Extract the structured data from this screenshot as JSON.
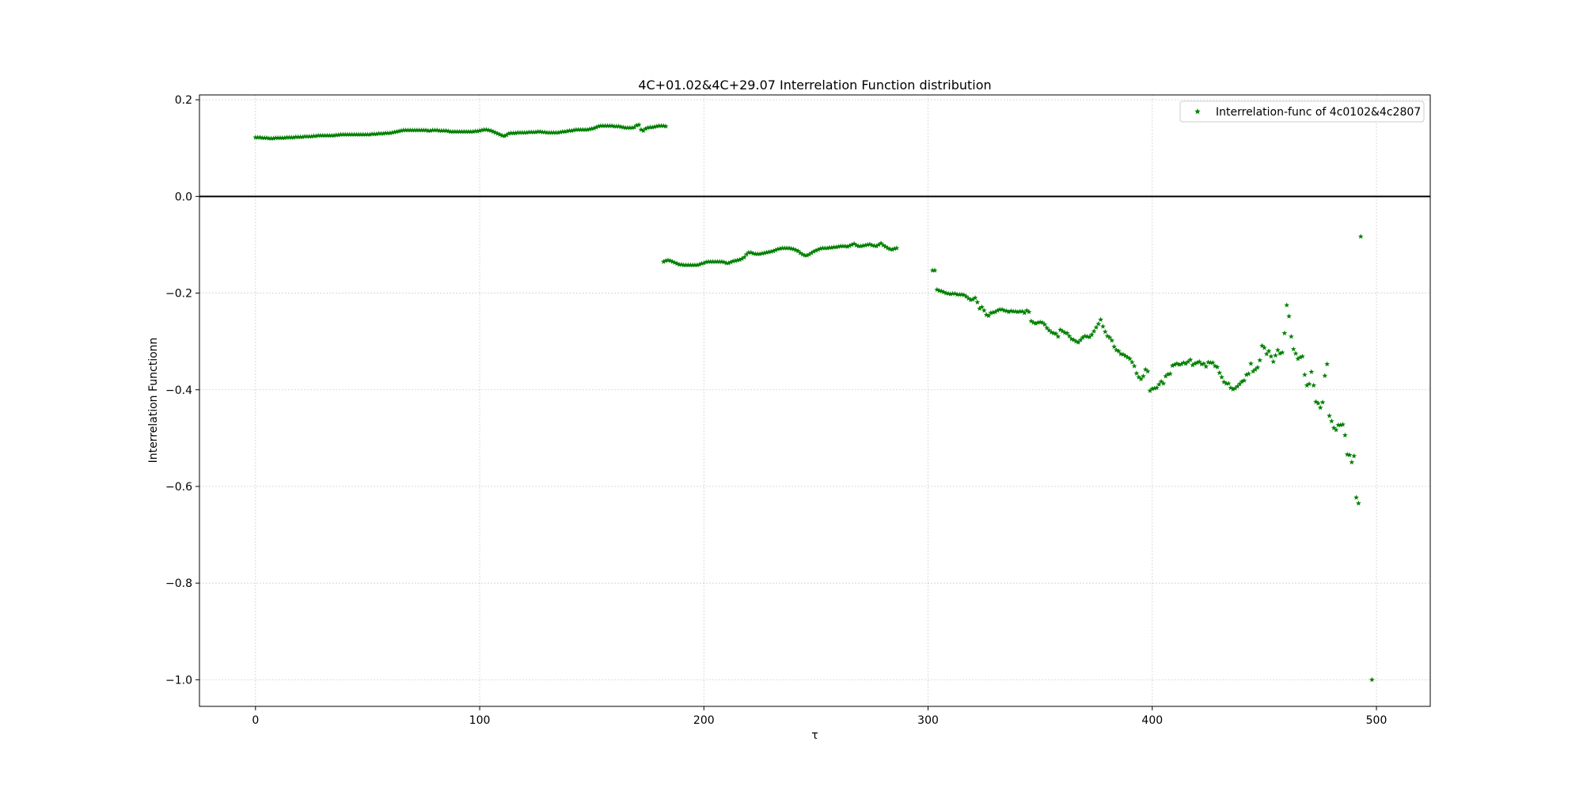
{
  "chart_data": {
    "type": "scatter",
    "title": "4C+01.02&4C+29.07 Interrelation Function distribution",
    "xlabel": "τ",
    "ylabel": "Interrelation Functionn",
    "xlim": [
      -25,
      524
    ],
    "ylim": [
      -1.055,
      0.21
    ],
    "x_ticks": [
      0,
      100,
      200,
      300,
      400,
      500
    ],
    "y_ticks": [
      0.2,
      0.0,
      -0.2,
      -0.4,
      -0.6,
      -0.8,
      -1.0
    ],
    "x_tick_labels": [
      "0",
      "100",
      "200",
      "300",
      "400",
      "500"
    ],
    "y_tick_labels": [
      "0.2",
      "0.0",
      "−0.2",
      "−0.4",
      "−0.6",
      "−0.8",
      "−1.0"
    ],
    "grid": true,
    "reference_line_y": 0.0,
    "legend": {
      "placement": "top-right",
      "entries": [
        "Interrelation-func of 4c0102&4c2807"
      ]
    },
    "colors": {
      "points": "#008000",
      "zero_line": "#000000",
      "grid": "#b0b0b0"
    },
    "marker": "star",
    "series": [
      {
        "name": "Interrelation-func of 4c0102&4c2807",
        "segments": [
          {
            "x_start": 0,
            "x_step": 1,
            "y": [
              0.122,
              0.122,
              0.122,
              0.121,
              0.121,
              0.121,
              0.12,
              0.12,
              0.12,
              0.121,
              0.121,
              0.121,
              0.121,
              0.121,
              0.122,
              0.122,
              0.122,
              0.122,
              0.123,
              0.123,
              0.123,
              0.123,
              0.124,
              0.124,
              0.124,
              0.124,
              0.125,
              0.125,
              0.126,
              0.126,
              0.126,
              0.126,
              0.126,
              0.126,
              0.126,
              0.126,
              0.127,
              0.127,
              0.128,
              0.128,
              0.128,
              0.128,
              0.128,
              0.128,
              0.128,
              0.128,
              0.128,
              0.128,
              0.128,
              0.128,
              0.128,
              0.128,
              0.129,
              0.129,
              0.129,
              0.13,
              0.13,
              0.13,
              0.131,
              0.131,
              0.131,
              0.132,
              0.133,
              0.134,
              0.135,
              0.136,
              0.137,
              0.137,
              0.137,
              0.137,
              0.137,
              0.137,
              0.137,
              0.137,
              0.137,
              0.137,
              0.137,
              0.136,
              0.136,
              0.137,
              0.137,
              0.137,
              0.136,
              0.136,
              0.136,
              0.136,
              0.135,
              0.134,
              0.134,
              0.134,
              0.134,
              0.134,
              0.134,
              0.134,
              0.134,
              0.134,
              0.134,
              0.134,
              0.135,
              0.135,
              0.136,
              0.137,
              0.138,
              0.138,
              0.137,
              0.136,
              0.134,
              0.132,
              0.13,
              0.128,
              0.126,
              0.125,
              0.127,
              0.13,
              0.131,
              0.131,
              0.131,
              0.132,
              0.132,
              0.132,
              0.132,
              0.132,
              0.133,
              0.133,
              0.133,
              0.133,
              0.134,
              0.134,
              0.133,
              0.133,
              0.132,
              0.132,
              0.132,
              0.132,
              0.132,
              0.132,
              0.133,
              0.134,
              0.134,
              0.135,
              0.136,
              0.136,
              0.137,
              0.138,
              0.138,
              0.138,
              0.138,
              0.138,
              0.138,
              0.139,
              0.14,
              0.141,
              0.143,
              0.145,
              0.146,
              0.146,
              0.146,
              0.146,
              0.146,
              0.146,
              0.145,
              0.145,
              0.145,
              0.144,
              0.143,
              0.142,
              0.142,
              0.142,
              0.142,
              0.143,
              0.147,
              0.148,
              0.138,
              0.136,
              0.14,
              0.142,
              0.143,
              0.143,
              0.144,
              0.145,
              0.146,
              0.146,
              0.146,
              0.145
            ]
          },
          {
            "x_start": 182,
            "x_step": 1,
            "y": [
              -0.135,
              -0.133,
              -0.132,
              -0.133,
              -0.135,
              -0.137,
              -0.139,
              -0.141,
              -0.141,
              -0.142,
              -0.142,
              -0.142,
              -0.142,
              -0.142,
              -0.142,
              -0.142,
              -0.141,
              -0.139,
              -0.138,
              -0.136,
              -0.135,
              -0.135,
              -0.135,
              -0.135,
              -0.135,
              -0.135,
              -0.135,
              -0.136,
              -0.138,
              -0.138,
              -0.136,
              -0.134,
              -0.133,
              -0.132,
              -0.131,
              -0.129,
              -0.126,
              -0.12,
              -0.116,
              -0.116,
              -0.118,
              -0.119,
              -0.119,
              -0.119,
              -0.118,
              -0.117,
              -0.116,
              -0.115,
              -0.114,
              -0.113,
              -0.111,
              -0.109,
              -0.108,
              -0.107,
              -0.107,
              -0.107,
              -0.107,
              -0.108,
              -0.109,
              -0.111,
              -0.113,
              -0.117,
              -0.12,
              -0.122,
              -0.122,
              -0.12,
              -0.117,
              -0.114,
              -0.112,
              -0.11,
              -0.108,
              -0.107,
              -0.107,
              -0.107,
              -0.106,
              -0.106,
              -0.105,
              -0.105,
              -0.104,
              -0.103,
              -0.103,
              -0.103,
              -0.104,
              -0.102,
              -0.1,
              -0.098,
              -0.101,
              -0.103,
              -0.103,
              -0.102,
              -0.101,
              -0.1,
              -0.099,
              -0.101,
              -0.102,
              -0.103,
              -0.1,
              -0.097,
              -0.101,
              -0.104,
              -0.107,
              -0.109,
              -0.11,
              -0.108,
              -0.107
            ]
          },
          {
            "x_start": 302,
            "x_step": 1,
            "y": [
              -0.153,
              -0.153,
              -0.193,
              -0.195,
              -0.196,
              -0.198,
              -0.2,
              -0.201,
              -0.202,
              -0.201,
              -0.201,
              -0.203,
              -0.203,
              -0.203,
              -0.204,
              -0.207,
              -0.211,
              -0.214,
              -0.213,
              -0.21,
              -0.219,
              -0.232,
              -0.229,
              -0.236,
              -0.245,
              -0.247,
              -0.241,
              -0.24,
              -0.239,
              -0.236,
              -0.234,
              -0.234,
              -0.236,
              -0.237,
              -0.239,
              -0.237,
              -0.238,
              -0.238,
              -0.239,
              -0.238,
              -0.238,
              -0.241,
              -0.236,
              -0.239,
              -0.258,
              -0.261,
              -0.263,
              -0.261,
              -0.26,
              -0.261,
              -0.265,
              -0.272,
              -0.277,
              -0.281,
              -0.283,
              -0.284,
              -0.29,
              -0.276,
              -0.279,
              -0.282,
              -0.283,
              -0.289,
              -0.295,
              -0.297,
              -0.3,
              -0.302,
              -0.297,
              -0.292,
              -0.289,
              -0.29,
              -0.291,
              -0.286,
              -0.279,
              -0.271,
              -0.264,
              -0.255,
              -0.269,
              -0.28,
              -0.289,
              -0.292,
              -0.298,
              -0.311,
              -0.318,
              -0.32,
              -0.326,
              -0.327,
              -0.33,
              -0.333,
              -0.336,
              -0.343,
              -0.351,
              -0.366,
              -0.374,
              -0.378,
              -0.372,
              -0.358,
              -0.362,
              -0.402,
              -0.398,
              -0.397,
              -0.396,
              -0.389,
              -0.383,
              -0.387,
              -0.372,
              -0.368,
              -0.367,
              -0.35,
              -0.348,
              -0.346,
              -0.348,
              -0.347,
              -0.344,
              -0.346,
              -0.342,
              -0.338,
              -0.349,
              -0.346,
              -0.344,
              -0.342,
              -0.347,
              -0.346,
              -0.352,
              -0.343,
              -0.344,
              -0.344,
              -0.351,
              -0.353,
              -0.365,
              -0.374,
              -0.384,
              -0.387,
              -0.387,
              -0.396,
              -0.399,
              -0.397,
              -0.393,
              -0.388,
              -0.383,
              -0.381,
              -0.369,
              -0.367,
              -0.346,
              -0.362,
              -0.358,
              -0.354,
              -0.339,
              -0.309,
              -0.313,
              -0.326,
              -0.32,
              -0.331,
              -0.342,
              -0.329,
              -0.318,
              -0.325,
              -0.323,
              -0.283,
              -0.225,
              -0.248,
              -0.29,
              -0.316,
              -0.325,
              -0.336,
              -0.333,
              -0.331,
              -0.369,
              -0.391,
              -0.388,
              -0.363,
              -0.391,
              -0.425,
              -0.428,
              -0.437,
              -0.426,
              -0.371,
              -0.347,
              -0.454,
              -0.465,
              -0.479,
              -0.483,
              -0.473,
              -0.473,
              -0.472,
              -0.494,
              -0.534,
              -0.535,
              -0.55,
              -0.537,
              -0.623,
              -0.635,
              -0.083
            ]
          },
          {
            "x_start": 498,
            "x_step": 1,
            "y": [
              -1.0
            ]
          }
        ]
      }
    ]
  }
}
